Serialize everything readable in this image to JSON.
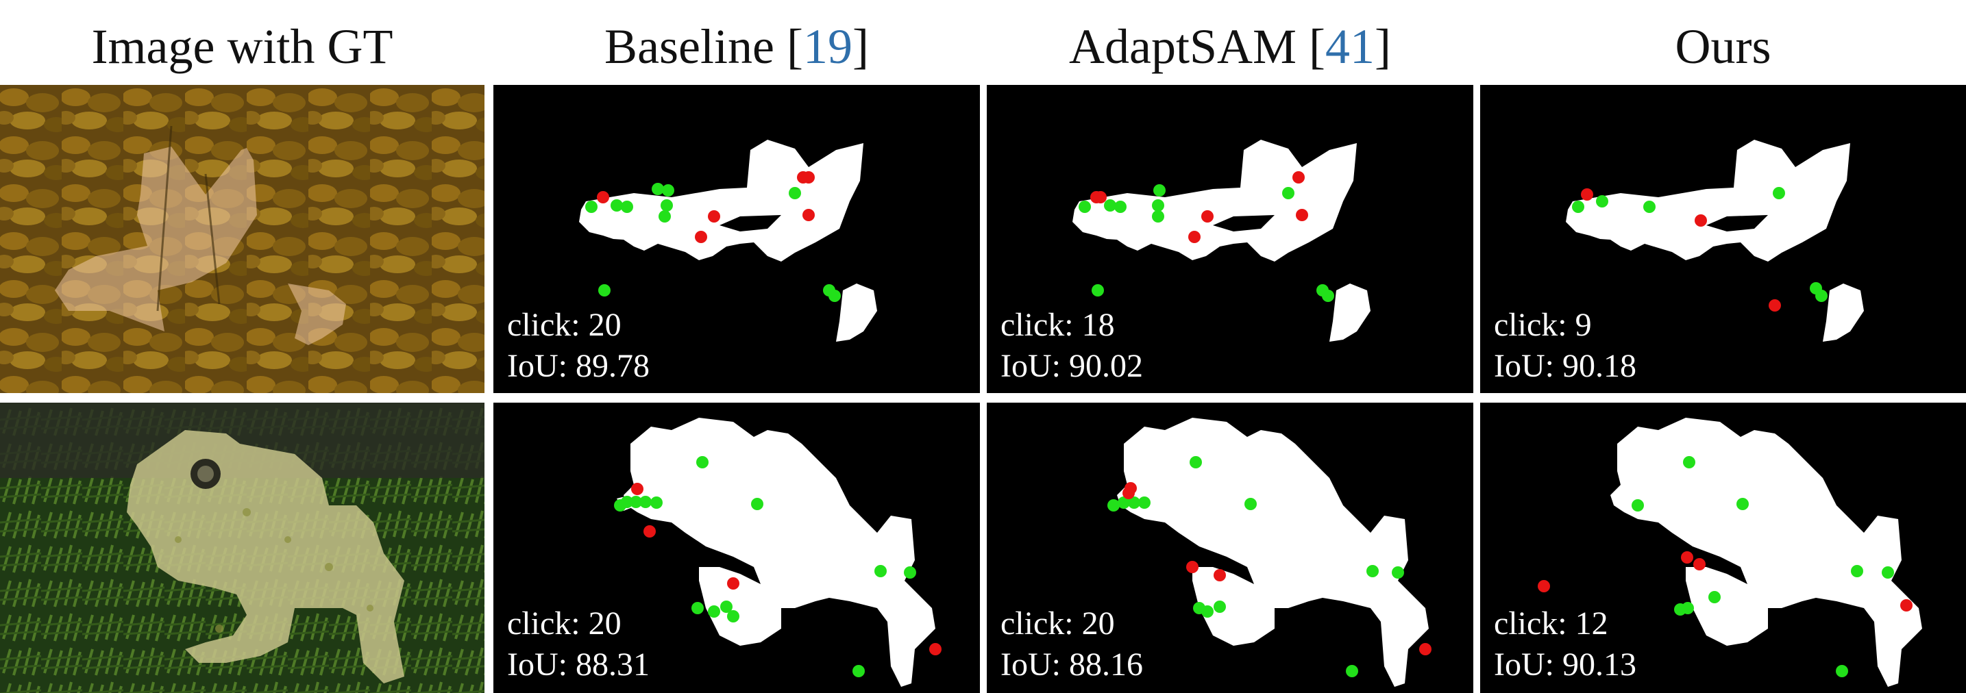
{
  "columns": [
    {
      "title": "Image with GT",
      "ref": ""
    },
    {
      "title": "Baseline [",
      "ref": "19",
      "close": "]"
    },
    {
      "title": "AdaptSAM [",
      "ref": "41",
      "close": "]"
    },
    {
      "title": "Ours",
      "ref": ""
    }
  ],
  "rows": [
    {
      "subject": "fox",
      "methods": [
        {
          "click_label": "click: 20",
          "iou_label": "IoU: 89.78"
        },
        {
          "click_label": "click: 18",
          "iou_label": "IoU: 90.02"
        },
        {
          "click_label": "click: 9",
          "iou_label": "IoU: 90.18"
        }
      ]
    },
    {
      "subject": "frog",
      "methods": [
        {
          "click_label": "click: 20",
          "iou_label": "IoU: 88.31"
        },
        {
          "click_label": "click: 20",
          "iou_label": "IoU: 88.16"
        },
        {
          "click_label": "click: 12",
          "iou_label": "IoU: 90.13"
        }
      ]
    }
  ],
  "colors": {
    "positive_click": "#22e01a",
    "negative_click": "#e81414",
    "mask": "#ffffff",
    "background": "#000000",
    "citation": "#2f6fab"
  }
}
